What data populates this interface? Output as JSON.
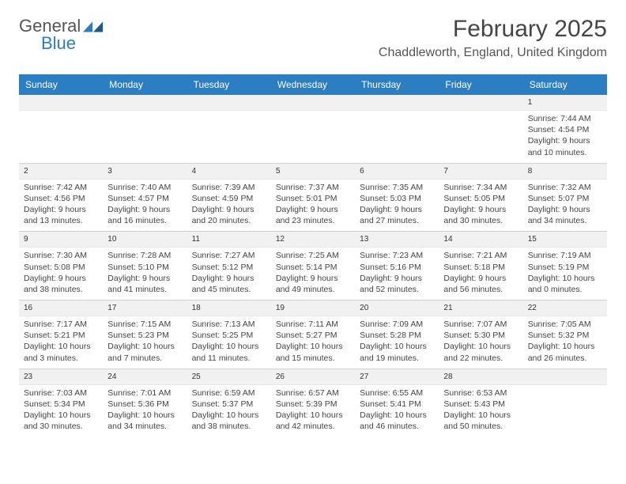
{
  "logo": {
    "text1": "General",
    "text2": "Blue"
  },
  "title": "February 2025",
  "location": "Chaddleworth, England, United Kingdom",
  "colors": {
    "header_bg": "#2b7ec2",
    "header_text": "#ffffff",
    "daynum_bg": "#f1f1f1",
    "border": "#d0d0d0",
    "text": "#444444"
  },
  "day_headers": [
    "Sunday",
    "Monday",
    "Tuesday",
    "Wednesday",
    "Thursday",
    "Friday",
    "Saturday"
  ],
  "weeks": [
    [
      {
        "blank": true
      },
      {
        "blank": true
      },
      {
        "blank": true
      },
      {
        "blank": true
      },
      {
        "blank": true
      },
      {
        "blank": true
      },
      {
        "day": "1",
        "sunrise": "Sunrise: 7:44 AM",
        "sunset": "Sunset: 4:54 PM",
        "daylight": "Daylight: 9 hours and 10 minutes."
      }
    ],
    [
      {
        "day": "2",
        "sunrise": "Sunrise: 7:42 AM",
        "sunset": "Sunset: 4:56 PM",
        "daylight": "Daylight: 9 hours and 13 minutes."
      },
      {
        "day": "3",
        "sunrise": "Sunrise: 7:40 AM",
        "sunset": "Sunset: 4:57 PM",
        "daylight": "Daylight: 9 hours and 16 minutes."
      },
      {
        "day": "4",
        "sunrise": "Sunrise: 7:39 AM",
        "sunset": "Sunset: 4:59 PM",
        "daylight": "Daylight: 9 hours and 20 minutes."
      },
      {
        "day": "5",
        "sunrise": "Sunrise: 7:37 AM",
        "sunset": "Sunset: 5:01 PM",
        "daylight": "Daylight: 9 hours and 23 minutes."
      },
      {
        "day": "6",
        "sunrise": "Sunrise: 7:35 AM",
        "sunset": "Sunset: 5:03 PM",
        "daylight": "Daylight: 9 hours and 27 minutes."
      },
      {
        "day": "7",
        "sunrise": "Sunrise: 7:34 AM",
        "sunset": "Sunset: 5:05 PM",
        "daylight": "Daylight: 9 hours and 30 minutes."
      },
      {
        "day": "8",
        "sunrise": "Sunrise: 7:32 AM",
        "sunset": "Sunset: 5:07 PM",
        "daylight": "Daylight: 9 hours and 34 minutes."
      }
    ],
    [
      {
        "day": "9",
        "sunrise": "Sunrise: 7:30 AM",
        "sunset": "Sunset: 5:08 PM",
        "daylight": "Daylight: 9 hours and 38 minutes."
      },
      {
        "day": "10",
        "sunrise": "Sunrise: 7:28 AM",
        "sunset": "Sunset: 5:10 PM",
        "daylight": "Daylight: 9 hours and 41 minutes."
      },
      {
        "day": "11",
        "sunrise": "Sunrise: 7:27 AM",
        "sunset": "Sunset: 5:12 PM",
        "daylight": "Daylight: 9 hours and 45 minutes."
      },
      {
        "day": "12",
        "sunrise": "Sunrise: 7:25 AM",
        "sunset": "Sunset: 5:14 PM",
        "daylight": "Daylight: 9 hours and 49 minutes."
      },
      {
        "day": "13",
        "sunrise": "Sunrise: 7:23 AM",
        "sunset": "Sunset: 5:16 PM",
        "daylight": "Daylight: 9 hours and 52 minutes."
      },
      {
        "day": "14",
        "sunrise": "Sunrise: 7:21 AM",
        "sunset": "Sunset: 5:18 PM",
        "daylight": "Daylight: 9 hours and 56 minutes."
      },
      {
        "day": "15",
        "sunrise": "Sunrise: 7:19 AM",
        "sunset": "Sunset: 5:19 PM",
        "daylight": "Daylight: 10 hours and 0 minutes."
      }
    ],
    [
      {
        "day": "16",
        "sunrise": "Sunrise: 7:17 AM",
        "sunset": "Sunset: 5:21 PM",
        "daylight": "Daylight: 10 hours and 3 minutes."
      },
      {
        "day": "17",
        "sunrise": "Sunrise: 7:15 AM",
        "sunset": "Sunset: 5:23 PM",
        "daylight": "Daylight: 10 hours and 7 minutes."
      },
      {
        "day": "18",
        "sunrise": "Sunrise: 7:13 AM",
        "sunset": "Sunset: 5:25 PM",
        "daylight": "Daylight: 10 hours and 11 minutes."
      },
      {
        "day": "19",
        "sunrise": "Sunrise: 7:11 AM",
        "sunset": "Sunset: 5:27 PM",
        "daylight": "Daylight: 10 hours and 15 minutes."
      },
      {
        "day": "20",
        "sunrise": "Sunrise: 7:09 AM",
        "sunset": "Sunset: 5:28 PM",
        "daylight": "Daylight: 10 hours and 19 minutes."
      },
      {
        "day": "21",
        "sunrise": "Sunrise: 7:07 AM",
        "sunset": "Sunset: 5:30 PM",
        "daylight": "Daylight: 10 hours and 22 minutes."
      },
      {
        "day": "22",
        "sunrise": "Sunrise: 7:05 AM",
        "sunset": "Sunset: 5:32 PM",
        "daylight": "Daylight: 10 hours and 26 minutes."
      }
    ],
    [
      {
        "day": "23",
        "sunrise": "Sunrise: 7:03 AM",
        "sunset": "Sunset: 5:34 PM",
        "daylight": "Daylight: 10 hours and 30 minutes."
      },
      {
        "day": "24",
        "sunrise": "Sunrise: 7:01 AM",
        "sunset": "Sunset: 5:36 PM",
        "daylight": "Daylight: 10 hours and 34 minutes."
      },
      {
        "day": "25",
        "sunrise": "Sunrise: 6:59 AM",
        "sunset": "Sunset: 5:37 PM",
        "daylight": "Daylight: 10 hours and 38 minutes."
      },
      {
        "day": "26",
        "sunrise": "Sunrise: 6:57 AM",
        "sunset": "Sunset: 5:39 PM",
        "daylight": "Daylight: 10 hours and 42 minutes."
      },
      {
        "day": "27",
        "sunrise": "Sunrise: 6:55 AM",
        "sunset": "Sunset: 5:41 PM",
        "daylight": "Daylight: 10 hours and 46 minutes."
      },
      {
        "day": "28",
        "sunrise": "Sunrise: 6:53 AM",
        "sunset": "Sunset: 5:43 PM",
        "daylight": "Daylight: 10 hours and 50 minutes."
      },
      {
        "blank": true
      }
    ]
  ]
}
